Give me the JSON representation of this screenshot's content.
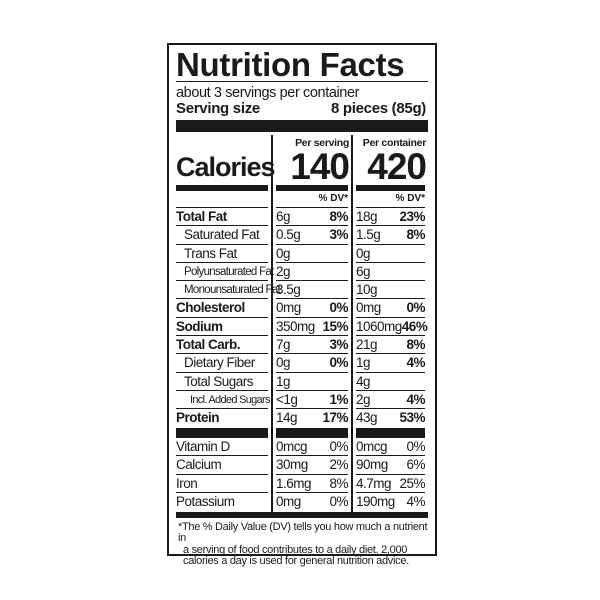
{
  "title": "Nutrition Facts",
  "servings_per_container": "about 3 servings per container",
  "serving_size": {
    "label": "Serving size",
    "value": "8 pieces (85g)"
  },
  "columns": {
    "per_serving": "Per serving",
    "per_container": "Per container",
    "dv_label": "% DV*"
  },
  "calories": {
    "label": "Calories",
    "per_serving": "140",
    "per_container": "420"
  },
  "nutrients": [
    {
      "name": "Total Fat",
      "style": "bold",
      "serving": "6g",
      "serving_dv": "8%",
      "container": "18g",
      "container_dv": "23%"
    },
    {
      "name": "Saturated Fat",
      "style": "ind1",
      "serving": "0.5g",
      "serving_dv": "3%",
      "container": "1.5g",
      "container_dv": "8%"
    },
    {
      "name": "Trans Fat",
      "style": "ind1",
      "serving": "0g",
      "serving_dv": "",
      "container": "0g",
      "container_dv": ""
    },
    {
      "name": "Polyunsaturated Fat",
      "style": "ind2",
      "serving": "2g",
      "serving_dv": "",
      "container": "6g",
      "container_dv": ""
    },
    {
      "name": "Monounsaturated Fat",
      "style": "ind2",
      "serving": "3.5g",
      "serving_dv": "",
      "container": "10g",
      "container_dv": ""
    },
    {
      "name": "Cholesterol",
      "style": "bold",
      "serving": "0mg",
      "serving_dv": "0%",
      "container": "0mg",
      "container_dv": "0%"
    },
    {
      "name": "Sodium",
      "style": "bold",
      "serving": "350mg",
      "serving_dv": "15%",
      "container": "1060mg",
      "container_dv": "46%"
    },
    {
      "name": "Total Carb.",
      "style": "bold",
      "serving": "7g",
      "serving_dv": "3%",
      "container": "21g",
      "container_dv": "8%"
    },
    {
      "name": "Dietary Fiber",
      "style": "ind1",
      "serving": "0g",
      "serving_dv": "0%",
      "container": "1g",
      "container_dv": "4%"
    },
    {
      "name": "Total Sugars",
      "style": "ind1",
      "serving": "1g",
      "serving_dv": "",
      "container": "4g",
      "container_dv": ""
    },
    {
      "name": "Incl. Added Sugars",
      "style": "ind3",
      "serving": "<1g",
      "serving_dv": "1%",
      "container": "2g",
      "container_dv": "4%"
    },
    {
      "name": "Protein",
      "style": "bold",
      "serving": "14g",
      "serving_dv": "17%",
      "container": "43g",
      "container_dv": "53%"
    }
  ],
  "vitamins": [
    {
      "name": "Vitamin D",
      "serving": "0mcg",
      "serving_dv": "0%",
      "container": "0mcg",
      "container_dv": "0%"
    },
    {
      "name": "Calcium",
      "serving": "30mg",
      "serving_dv": "2%",
      "container": "90mg",
      "container_dv": "6%"
    },
    {
      "name": "Iron",
      "serving": "1.6mg",
      "serving_dv": "8%",
      "container": "4.7mg",
      "container_dv": "25%"
    },
    {
      "name": "Potassium",
      "serving": "0mg",
      "serving_dv": "0%",
      "container": "190mg",
      "container_dv": "4%"
    }
  ],
  "footnote": [
    "*The % Daily Value (DV) tells you how much a nutrient in",
    "a serving of food contributes to a daily diet. 2,000",
    "calories a day is used for general nutrition advice."
  ]
}
